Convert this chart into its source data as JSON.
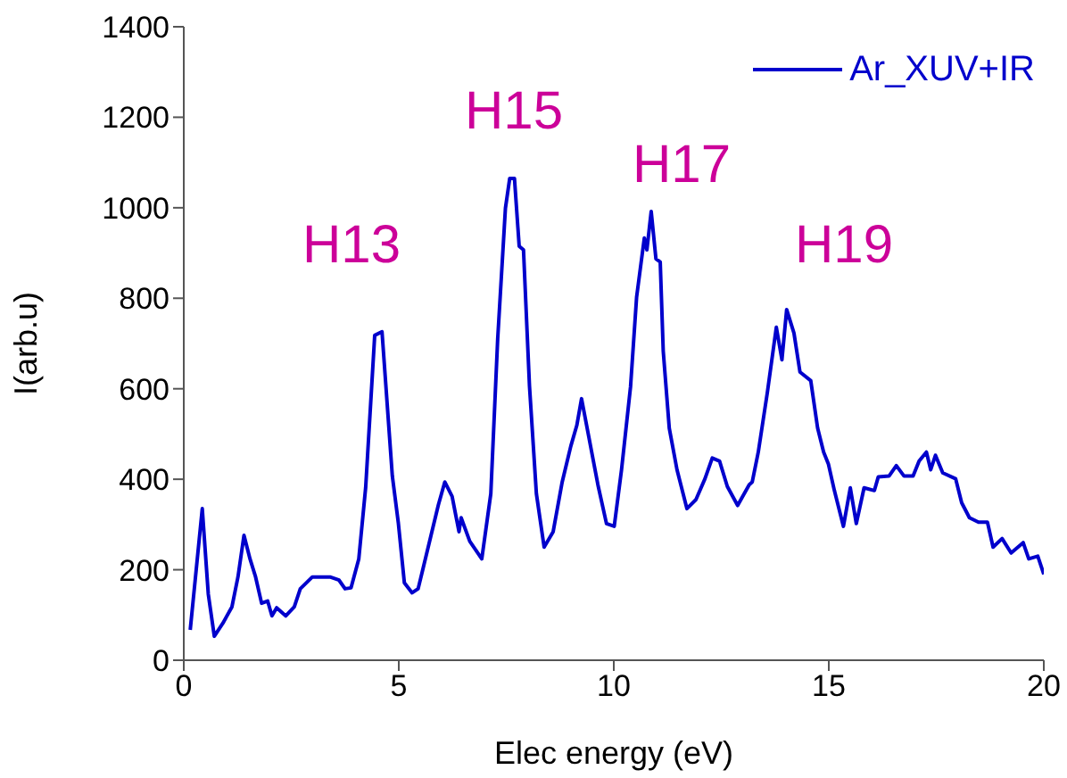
{
  "chart_data": {
    "type": "line",
    "xlabel": "Elec energy (eV)",
    "ylabel": "I(arb.u)",
    "x": [
      0.15,
      0.43,
      0.57,
      0.71,
      0.91,
      1.12,
      1.26,
      1.4,
      1.54,
      1.67,
      1.81,
      1.95,
      2.05,
      2.16,
      2.37,
      2.57,
      2.71,
      2.99,
      3.2,
      3.4,
      3.61,
      3.75,
      3.89,
      4.07,
      4.23,
      4.44,
      4.61,
      4.85,
      4.99,
      5.13,
      5.31,
      5.45,
      5.55,
      5.75,
      5.92,
      6.07,
      6.24,
      6.4,
      6.45,
      6.65,
      6.93,
      7.14,
      7.3,
      7.48,
      7.58,
      7.69,
      7.8,
      7.9,
      8.04,
      8.2,
      8.38,
      8.59,
      8.8,
      9.0,
      9.14,
      9.25,
      9.42,
      9.63,
      9.83,
      10.01,
      10.18,
      10.39,
      10.53,
      10.71,
      10.77,
      10.87,
      10.98,
      11.08,
      11.15,
      11.29,
      11.47,
      11.7,
      11.91,
      12.12,
      12.29,
      12.46,
      12.64,
      12.88,
      13.15,
      13.22,
      13.36,
      13.57,
      13.78,
      13.91,
      14.02,
      14.19,
      14.33,
      14.58,
      14.74,
      14.88,
      14.99,
      15.13,
      15.34,
      15.5,
      15.64,
      15.82,
      16.06,
      16.15,
      16.4,
      16.57,
      16.75,
      16.96,
      17.1,
      17.27,
      17.37,
      17.48,
      17.65,
      17.95,
      18.09,
      18.27,
      18.48,
      18.69,
      18.82,
      19.03,
      19.24,
      19.52,
      19.65,
      19.86,
      20.0
    ],
    "series": [
      {
        "name": "Ar_XUV+IR",
        "color": "#0000cc",
        "values": [
          67,
          335,
          146,
          53,
          82,
          118,
          184,
          276,
          224,
          184,
          126,
          131,
          98,
          116,
          98,
          118,
          158,
          184,
          184,
          184,
          177,
          158,
          160,
          224,
          382,
          718,
          726,
          407,
          303,
          171,
          149,
          158,
          197,
          276,
          343,
          394,
          362,
          284,
          315,
          263,
          224,
          368,
          710,
          999,
          1065,
          1065,
          915,
          907,
          605,
          368,
          250,
          284,
          394,
          473,
          519,
          578,
          493,
          388,
          302,
          296,
          421,
          605,
          802,
          933,
          907,
          992,
          887,
          880,
          683,
          513,
          421,
          335,
          355,
          401,
          447,
          440,
          384,
          342,
          388,
          394,
          460,
          591,
          736,
          664,
          775,
          723,
          637,
          618,
          513,
          460,
          434,
          375,
          296,
          381,
          302,
          381,
          375,
          405,
          407,
          430,
          407,
          407,
          440,
          460,
          421,
          453,
          414,
          401,
          348,
          315,
          305,
          305,
          250,
          269,
          237,
          260,
          224,
          230,
          190
        ]
      }
    ],
    "xlim": [
      0,
      20
    ],
    "xticks": [
      0,
      5,
      10,
      15,
      20
    ],
    "ylim": [
      0,
      1400
    ],
    "yticks": [
      0,
      200,
      400,
      600,
      800,
      1000,
      1200,
      1400
    ],
    "grid": false,
    "legend": "top right",
    "marker": "none",
    "line_style": "solid",
    "annotations": [
      "H13",
      "H15",
      "H17",
      "H19"
    ]
  }
}
